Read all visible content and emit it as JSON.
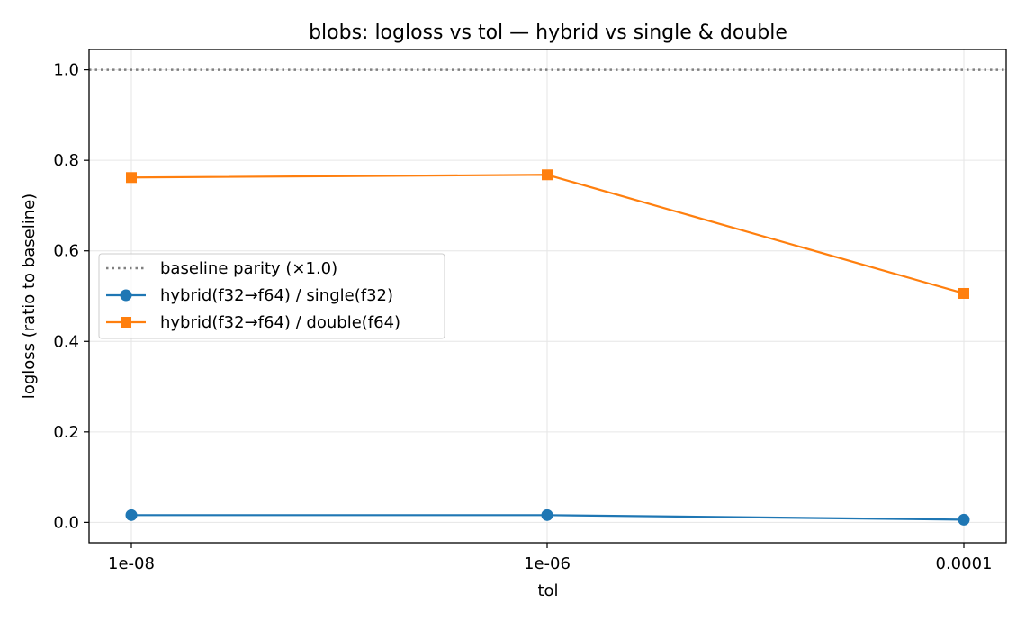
{
  "chart_data": {
    "type": "line",
    "title": "blobs: logloss vs tol — hybrid vs single & double",
    "xlabel": "tol",
    "ylabel": "logloss (ratio to baseline)",
    "categories": [
      "1e-08",
      "1e-06",
      "0.0001"
    ],
    "ylim": [
      -0.045,
      1.045
    ],
    "yticks": [
      0.0,
      0.2,
      0.4,
      0.6,
      0.8,
      1.0
    ],
    "ytick_labels": [
      "0.0",
      "0.2",
      "0.4",
      "0.6",
      "0.8",
      "1.0"
    ],
    "grid": true,
    "legend_position": "center-left",
    "baseline": {
      "name": "baseline parity (×1.0)",
      "value": 1.0,
      "color": "#808080",
      "style": "dotted"
    },
    "series": [
      {
        "name": "hybrid(f32→f64) / single(f32)",
        "values": [
          0.016,
          0.016,
          0.006
        ],
        "color": "#1f77b4",
        "marker": "circle"
      },
      {
        "name": "hybrid(f32→f64) / double(f64)",
        "values": [
          0.762,
          0.768,
          0.506
        ],
        "color": "#ff7f0e",
        "marker": "square"
      }
    ]
  }
}
